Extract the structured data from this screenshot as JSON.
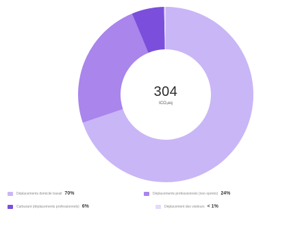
{
  "chart_data": {
    "type": "pie",
    "donut": true,
    "center": {
      "total": "304",
      "unit": "tCO₂eq"
    },
    "legend_position": "bottom",
    "slices": [
      {
        "label": "Déplacements domicile travail",
        "value_label": "70%",
        "value": 70,
        "color": "#c9b6f6"
      },
      {
        "label": "Déplacements professionnels (non opérés)",
        "value_label": "24%",
        "value": 24,
        "color": "#a985ec"
      },
      {
        "label": "Carburant (déplacements professionnels)",
        "value_label": "6%",
        "value": 6,
        "color": "#7b4fdb"
      },
      {
        "label": "Déplacement des visiteurs",
        "value_label": "< 1%",
        "value": 0.3,
        "color": "#e4dafb"
      }
    ]
  }
}
